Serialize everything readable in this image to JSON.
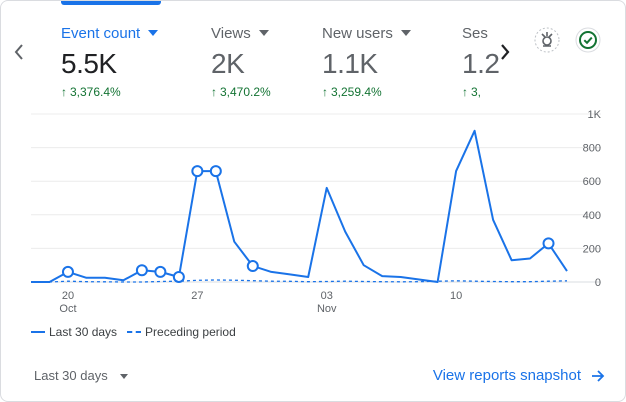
{
  "tabs": [
    {
      "label": "Event count",
      "value": "5.5K",
      "change": "3,376.4%",
      "active": true
    },
    {
      "label": "Views",
      "value": "2K",
      "change": "3,470.2%",
      "active": false
    },
    {
      "label": "New users",
      "value": "1.1K",
      "change": "3,259.4%",
      "active": false
    },
    {
      "label": "Ses",
      "value": "1.2",
      "change": "3,",
      "active": false
    }
  ],
  "icons": {
    "prev": "chevron-left-icon",
    "next": "chevron-right-icon",
    "insights": "insights-icon",
    "status": "check-circle-icon"
  },
  "colors": {
    "accent": "#1a73e8",
    "positive": "#137333",
    "muted": "#5f6368"
  },
  "chart_data": {
    "type": "line",
    "y_ticks": [
      "1K",
      "800",
      "600",
      "400",
      "200",
      "0"
    ],
    "y_tick_values": [
      1000,
      800,
      600,
      400,
      200,
      0
    ],
    "ylim": [
      0,
      1000
    ],
    "x_ticks": [
      {
        "label": "20",
        "sub": "Oct",
        "index": 2
      },
      {
        "label": "27",
        "sub": "",
        "index": 9
      },
      {
        "label": "03",
        "sub": "Nov",
        "index": 16
      },
      {
        "label": "10",
        "sub": "",
        "index": 23
      }
    ],
    "series": [
      {
        "name": "Last 30 days",
        "style": "solid",
        "values": [
          0,
          0,
          60,
          25,
          25,
          10,
          70,
          60,
          30,
          660,
          660,
          240,
          95,
          60,
          45,
          30,
          560,
          300,
          100,
          35,
          30,
          15,
          0,
          660,
          900,
          370,
          130,
          140,
          230,
          65
        ],
        "markers": [
          2,
          6,
          7,
          8,
          9,
          10,
          12,
          28
        ]
      },
      {
        "name": "Preceding period",
        "style": "dashed",
        "values": [
          0,
          0,
          5,
          2,
          1,
          0,
          0,
          3,
          5,
          10,
          12,
          11,
          8,
          5,
          4,
          2,
          3,
          5,
          3,
          2,
          1,
          2,
          5,
          7,
          5,
          3,
          2,
          2,
          5,
          7
        ]
      }
    ]
  },
  "legend": {
    "current": "Last 30 days",
    "previous": "Preceding period"
  },
  "footer": {
    "period_label": "Last 30 days",
    "snapshot_link": "View reports snapshot"
  }
}
